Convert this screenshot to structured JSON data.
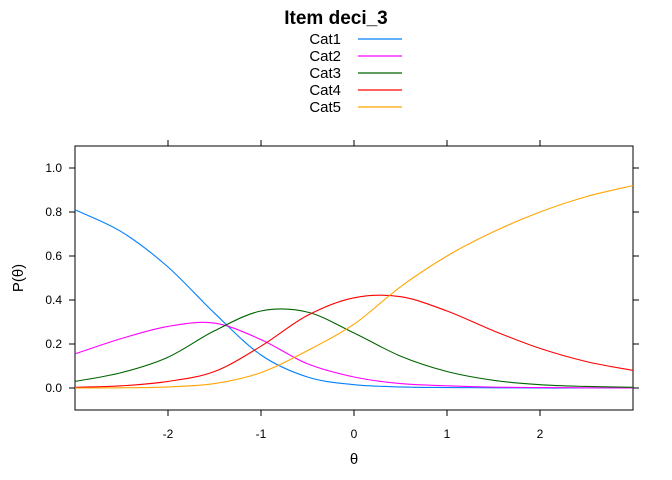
{
  "chart_data": {
    "type": "line",
    "title": "Item deci_3",
    "xlabel": "θ",
    "ylabel": "P(θ)",
    "xlim": [
      -3,
      3
    ],
    "ylim": [
      -0.1,
      1.1
    ],
    "xticks": [
      -2,
      -1,
      0,
      1,
      2
    ],
    "xtick_labels": [
      "-2",
      "-1",
      "0",
      "1",
      "2"
    ],
    "yticks": [
      0.0,
      0.2,
      0.4,
      0.6,
      0.8,
      1.0
    ],
    "ytick_labels": [
      "0.0",
      "0.2",
      "0.4",
      "0.6",
      "0.8",
      "1.0"
    ],
    "grid": false,
    "legend_position": "top-center",
    "x": [
      -3.0,
      -2.5,
      -2.0,
      -1.5,
      -1.0,
      -0.5,
      0.0,
      0.5,
      1.0,
      1.5,
      2.0,
      2.5,
      3.0
    ],
    "series": [
      {
        "name": "Cat1",
        "color": "#0080ff",
        "values": [
          0.81,
          0.71,
          0.55,
          0.34,
          0.15,
          0.05,
          0.015,
          0.005,
          0.002,
          0.001,
          0.0,
          0.0,
          0.0
        ]
      },
      {
        "name": "Cat2",
        "color": "#ff00ff",
        "values": [
          0.155,
          0.225,
          0.28,
          0.295,
          0.22,
          0.11,
          0.05,
          0.02,
          0.01,
          0.004,
          0.002,
          0.001,
          0.0
        ]
      },
      {
        "name": "Cat3",
        "color": "#006400",
        "values": [
          0.03,
          0.07,
          0.14,
          0.26,
          0.35,
          0.345,
          0.25,
          0.145,
          0.075,
          0.035,
          0.015,
          0.007,
          0.003
        ]
      },
      {
        "name": "Cat4",
        "color": "#ff0000",
        "values": [
          0.003,
          0.01,
          0.03,
          0.075,
          0.19,
          0.33,
          0.41,
          0.415,
          0.35,
          0.26,
          0.18,
          0.12,
          0.08
        ]
      },
      {
        "name": "Cat5",
        "color": "#ffa500",
        "values": [
          0.0,
          0.001,
          0.005,
          0.02,
          0.07,
          0.17,
          0.29,
          0.46,
          0.6,
          0.71,
          0.8,
          0.87,
          0.92
        ]
      }
    ]
  }
}
